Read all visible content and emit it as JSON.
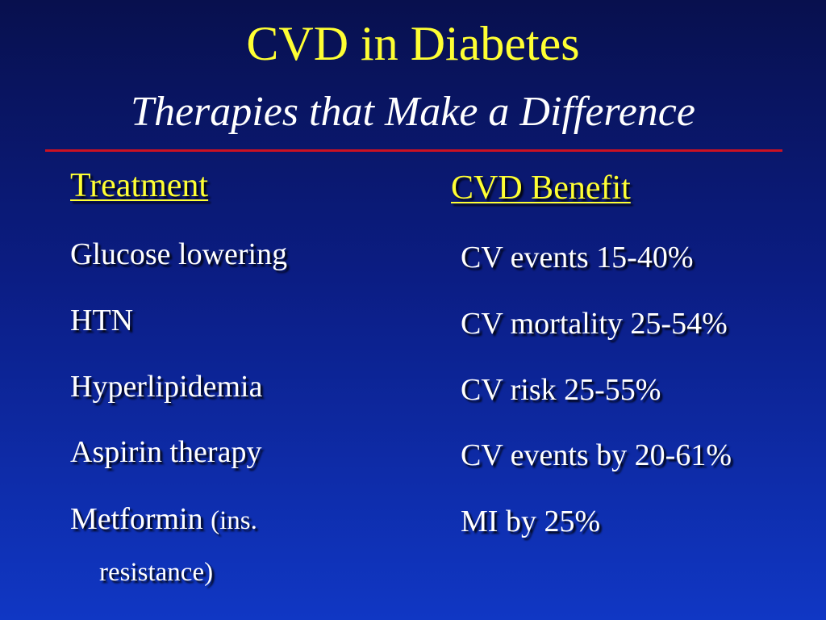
{
  "slide": {
    "title": "CVD in Diabetes",
    "subtitle": "Therapies that Make a Difference"
  },
  "table": {
    "headers": {
      "treatment": "Treatment",
      "benefit": "CVD Benefit"
    },
    "rows": [
      {
        "treatment": "Glucose lowering",
        "benefit": "CV events 15-40%"
      },
      {
        "treatment": "HTN",
        "benefit": "CV mortality 25-54%"
      },
      {
        "treatment": "Hyperlipidemia",
        "benefit": "CV risk 25-55%"
      },
      {
        "treatment": "Aspirin therapy",
        "benefit": "CV events by 20-61%"
      },
      {
        "treatment": "Metformin",
        "treatment_note": "(ins.",
        "treatment_note_cont": "resistance)",
        "benefit": "MI by 25%"
      }
    ]
  },
  "colors": {
    "title": "#ffff33",
    "text": "#ffffff",
    "rule": "#cc1122",
    "background_top": "#08104e",
    "background_bottom": "#1037c4"
  }
}
